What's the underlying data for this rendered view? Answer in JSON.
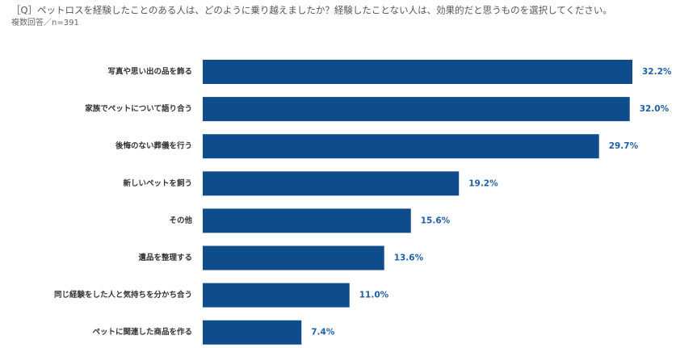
{
  "chart_data": {
    "type": "bar",
    "orientation": "horizontal",
    "title": "［Q］ペットロスを経験したことのある人は、どのように乗り越えましたか？経験したことない人は、効果的だと思うものを選択してください。",
    "subtitle": "複数回答／n=391",
    "categories": [
      "写真や思い出の品を飾る",
      "家族でペットについて語り合う",
      "後悔のない葬儀を行う",
      "新しいペットを飼う",
      "その他",
      "遺品を整理する",
      "同じ経験をした人と気持ちを分かち合う",
      "ペットに関連した商品を作る"
    ],
    "values": [
      32.2,
      32.0,
      29.7,
      19.2,
      15.6,
      13.6,
      11.0,
      7.4
    ],
    "value_labels": [
      "32.2%",
      "32.0%",
      "29.7%",
      "19.2%",
      "15.6%",
      "13.6%",
      "11.0%",
      "7.4%"
    ],
    "color": "#0f4c8c"
  }
}
